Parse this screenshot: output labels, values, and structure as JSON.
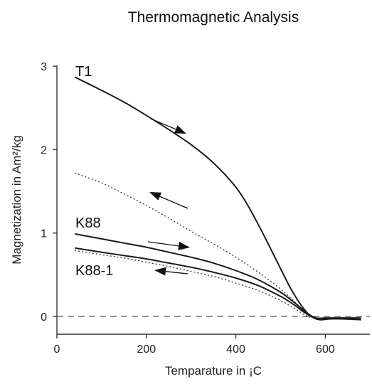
{
  "chart_data": {
    "type": "line",
    "title": "Thermomagnetic Analysis",
    "xlabel": "Temparature in ¡C",
    "ylabel": "Magnetization in Am²/kg",
    "xlim": [
      0,
      700
    ],
    "ylim": [
      -0.1,
      3.0
    ],
    "xticks": [
      0,
      200,
      400,
      600
    ],
    "yticks": [
      0,
      1,
      2,
      3
    ],
    "grid": false,
    "reference_lines": [
      {
        "y": 0,
        "style": "dashed"
      }
    ],
    "curve_labels": [
      {
        "text": "T1",
        "series": "T1 heating"
      },
      {
        "text": "K88",
        "series": "K88 heating"
      },
      {
        "text": "K88-1",
        "series": "K88-1 heating"
      }
    ],
    "series": [
      {
        "name": "T1",
        "line_style": "solid",
        "arrow": "right",
        "x": [
          40,
          100,
          150,
          200,
          250,
          300,
          350,
          400,
          430,
          460,
          490,
          520,
          540,
          560,
          575,
          590,
          610,
          640,
          680
        ],
        "y": [
          2.87,
          2.71,
          2.57,
          2.41,
          2.24,
          2.06,
          1.84,
          1.55,
          1.3,
          1.0,
          0.68,
          0.36,
          0.18,
          0.04,
          -0.02,
          -0.04,
          -0.03,
          -0.03,
          -0.04
        ]
      },
      {
        "line_style": "dotted",
        "arrow": "left",
        "x": [
          40,
          100,
          150,
          200,
          250,
          300,
          350,
          400,
          450,
          500,
          540,
          560,
          580
        ],
        "y": [
          1.72,
          1.6,
          1.47,
          1.33,
          1.18,
          1.02,
          0.87,
          0.71,
          0.53,
          0.33,
          0.13,
          0.03,
          -0.02
        ]
      },
      {
        "name": "K88",
        "line_style": "solid",
        "arrow": "right",
        "x": [
          40,
          100,
          150,
          200,
          250,
          300,
          350,
          400,
          450,
          500,
          530,
          550,
          565,
          580,
          600,
          640,
          680
        ],
        "y": [
          0.99,
          0.93,
          0.88,
          0.83,
          0.77,
          0.71,
          0.64,
          0.55,
          0.44,
          0.29,
          0.17,
          0.08,
          0.02,
          -0.02,
          -0.02,
          -0.02,
          -0.02
        ]
      },
      {
        "name": "K88-1",
        "line_style": "solid",
        "arrow": "left",
        "x": [
          40,
          100,
          150,
          200,
          250,
          300,
          350,
          400,
          450,
          500,
          530,
          550,
          565,
          580,
          600,
          640,
          680
        ],
        "y": [
          0.82,
          0.77,
          0.73,
          0.69,
          0.64,
          0.59,
          0.53,
          0.46,
          0.37,
          0.24,
          0.14,
          0.06,
          0.01,
          -0.02,
          -0.02,
          -0.02,
          -0.02
        ]
      },
      {
        "line_style": "dotted",
        "x": [
          40,
          100,
          150,
          200,
          250,
          300,
          350,
          400,
          450,
          500,
          530,
          550,
          570
        ],
        "y": [
          0.79,
          0.74,
          0.7,
          0.65,
          0.6,
          0.54,
          0.48,
          0.4,
          0.31,
          0.19,
          0.1,
          0.03,
          -0.02
        ]
      }
    ]
  }
}
